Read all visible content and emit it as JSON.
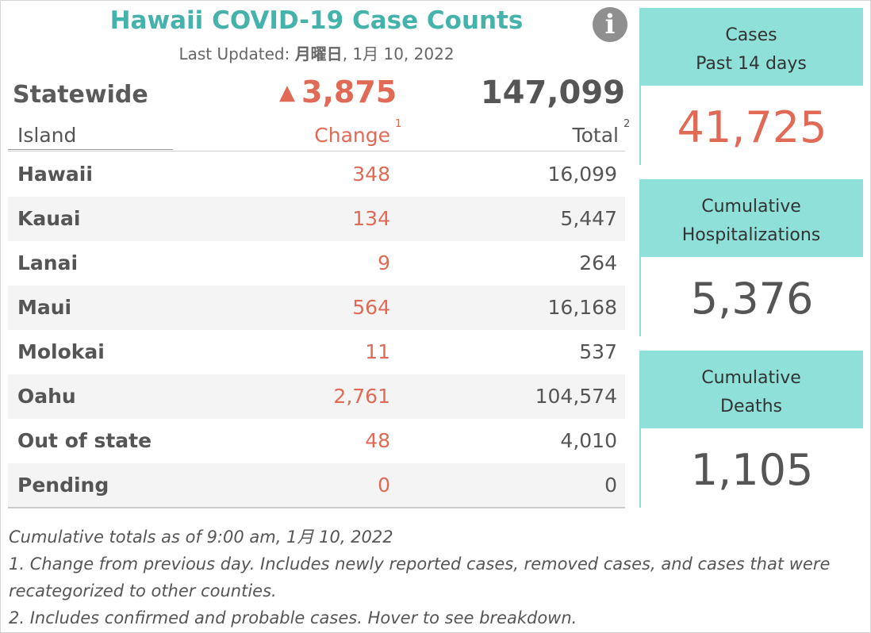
{
  "header": {
    "title": "Hawaii COVID-19 Case Counts",
    "updated_prefix": "Last Updated: ",
    "updated_day": "月曜日",
    "updated_rest": ", 1月 10, 2022"
  },
  "info_icon": {
    "glyph": "i",
    "icon": "info-icon"
  },
  "statewide": {
    "label": "Statewide",
    "change_arrow": "▲",
    "change": "3,875",
    "total": "147,099"
  },
  "table": {
    "columns": {
      "island": "Island",
      "change": "Change",
      "change_sup": "1",
      "total": "Total",
      "total_sup": "2"
    },
    "rows": [
      {
        "name": "Hawaii",
        "change": "348",
        "total": "16,099"
      },
      {
        "name": "Kauai",
        "change": "134",
        "total": "5,447"
      },
      {
        "name": "Lanai",
        "change": "9",
        "total": "264"
      },
      {
        "name": "Maui",
        "change": "564",
        "total": "16,168"
      },
      {
        "name": "Molokai",
        "change": "11",
        "total": "537"
      },
      {
        "name": "Oahu",
        "change": "2,761",
        "total": "104,574"
      },
      {
        "name": "Out of state",
        "change": "48",
        "total": "4,010"
      },
      {
        "name": "Pending",
        "change": "0",
        "total": "0"
      }
    ]
  },
  "notes": {
    "line1": "Cumulative totals as of 9:00 am, 1月 10, 2022",
    "line2": "1. Change from previous day. Includes newly reported cases, removed cases, and cases that were recategorized to other counties.",
    "line3": "2. Includes confirmed and probable cases. Hover to see breakdown."
  },
  "cards": {
    "cases": {
      "label_1": "Cases",
      "label_2": "Past 14 days",
      "value": "41,725"
    },
    "hospitalizations": {
      "label_1": "Cumulative",
      "label_2": "Hospitalizations",
      "value": "5,376"
    },
    "deaths": {
      "label_1": "Cumulative",
      "label_2": "Deaths",
      "value": "1,105"
    }
  },
  "colors": {
    "title": "#45b3ab",
    "accent_change": "#e06a55",
    "card_header": "#8ee0d9",
    "row_alt": "#f4f4f4"
  }
}
